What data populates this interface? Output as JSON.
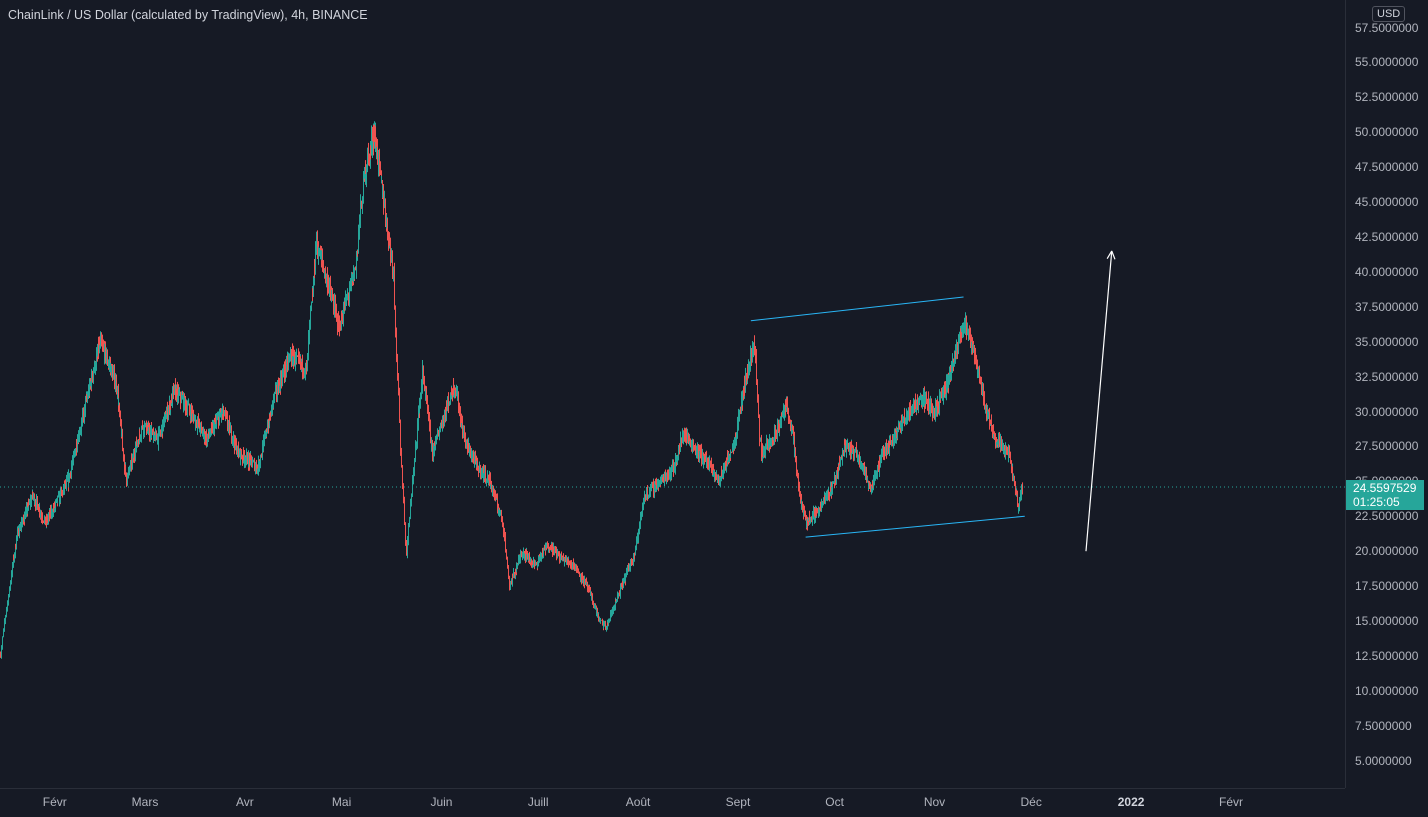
{
  "header": {
    "title": "ChainLink / US Dollar (calculated by TradingView), 4h, BINANCE",
    "currency": "USD"
  },
  "price_tag": {
    "price": "24.5597529",
    "countdown": "01:25:05"
  },
  "colors": {
    "background": "#161a25",
    "up": "#26a69a",
    "down": "#ef5350",
    "channel_line": "#29b6f6",
    "arrow": "#ffffff",
    "text": "#b2b5be"
  },
  "chart_data": {
    "type": "candlestick",
    "title": "ChainLink / US Dollar (calculated by TradingView), 4h, BINANCE",
    "yunit": "USD",
    "ylim": [
      2.5,
      57.5
    ],
    "y_ticks": [
      "57.5000000",
      "55.0000000",
      "52.5000000",
      "50.0000000",
      "47.5000000",
      "45.0000000",
      "42.5000000",
      "40.0000000",
      "37.5000000",
      "35.0000000",
      "32.5000000",
      "30.0000000",
      "27.5000000",
      "25.0000000",
      "22.5000000",
      "20.0000000",
      "17.5000000",
      "15.0000000",
      "12.5000000",
      "10.0000000",
      "7.5000000",
      "5.0000000"
    ],
    "x_ticks": [
      "Févr",
      "Mars",
      "Avr",
      "Mai",
      "Juin",
      "Juill",
      "Août",
      "Sept",
      "Oct",
      "Nov",
      "Déc",
      "2022",
      "Févr"
    ],
    "x_tick_dates": [
      "2021-02-01",
      "2021-03-01",
      "2021-04-01",
      "2021-05-01",
      "2021-06-01",
      "2021-07-01",
      "2021-08-01",
      "2021-09-01",
      "2021-10-01",
      "2021-11-01",
      "2021-12-01",
      "2022-01-01",
      "2022-02-01"
    ],
    "xlim": [
      "2021-01-15",
      "2022-02-28"
    ],
    "grid": false,
    "current_price": 24.5597529,
    "price_path": [
      [
        "2021-01-15",
        12.6
      ],
      [
        "2021-01-20",
        21.0
      ],
      [
        "2021-01-25",
        24.0
      ],
      [
        "2021-01-29",
        22.0
      ],
      [
        "2021-02-05",
        25.0
      ],
      [
        "2021-02-10",
        30.0
      ],
      [
        "2021-02-15",
        35.0
      ],
      [
        "2021-02-20",
        32.0
      ],
      [
        "2021-02-23",
        25.0
      ],
      [
        "2021-02-28",
        29.0
      ],
      [
        "2021-03-05",
        28.0
      ],
      [
        "2021-03-10",
        31.5
      ],
      [
        "2021-03-15",
        30.0
      ],
      [
        "2021-03-20",
        28.0
      ],
      [
        "2021-03-25",
        30.0
      ],
      [
        "2021-03-30",
        27.0
      ],
      [
        "2021-04-05",
        26.0
      ],
      [
        "2021-04-10",
        31.0
      ],
      [
        "2021-04-15",
        34.0
      ],
      [
        "2021-04-20",
        33.0
      ],
      [
        "2021-04-23",
        42.0
      ],
      [
        "2021-04-27",
        39.0
      ],
      [
        "2021-04-30",
        36.0
      ],
      [
        "2021-05-05",
        40.0
      ],
      [
        "2021-05-08",
        47.0
      ],
      [
        "2021-05-11",
        50.0
      ],
      [
        "2021-05-14",
        45.0
      ],
      [
        "2021-05-17",
        40.0
      ],
      [
        "2021-05-19",
        28.0
      ],
      [
        "2021-05-21",
        20.0
      ],
      [
        "2021-05-23",
        25.0
      ],
      [
        "2021-05-26",
        33.0
      ],
      [
        "2021-05-29",
        27.0
      ],
      [
        "2021-06-02",
        30.0
      ],
      [
        "2021-06-05",
        32.0
      ],
      [
        "2021-06-08",
        28.0
      ],
      [
        "2021-06-12",
        26.0
      ],
      [
        "2021-06-16",
        25.0
      ],
      [
        "2021-06-20",
        22.0
      ],
      [
        "2021-06-22",
        17.5
      ],
      [
        "2021-06-26",
        20.0
      ],
      [
        "2021-06-30",
        19.0
      ],
      [
        "2021-07-04",
        20.5
      ],
      [
        "2021-07-08",
        19.5
      ],
      [
        "2021-07-12",
        19.0
      ],
      [
        "2021-07-16",
        17.5
      ],
      [
        "2021-07-20",
        15.0
      ],
      [
        "2021-07-22",
        14.5
      ],
      [
        "2021-07-26",
        17.0
      ],
      [
        "2021-07-31",
        20.0
      ],
      [
        "2021-08-03",
        24.0
      ],
      [
        "2021-08-08",
        25.0
      ],
      [
        "2021-08-12",
        26.0
      ],
      [
        "2021-08-15",
        28.5
      ],
      [
        "2021-08-18",
        27.5
      ],
      [
        "2021-08-22",
        26.5
      ],
      [
        "2021-08-26",
        25.0
      ],
      [
        "2021-08-31",
        28.0
      ],
      [
        "2021-09-03",
        32.0
      ],
      [
        "2021-09-06",
        35.0
      ],
      [
        "2021-09-08",
        27.0
      ],
      [
        "2021-09-12",
        28.0
      ],
      [
        "2021-09-16",
        30.5
      ],
      [
        "2021-09-18",
        28.0
      ],
      [
        "2021-09-20",
        24.0
      ],
      [
        "2021-09-22",
        22.0
      ],
      [
        "2021-09-26",
        23.0
      ],
      [
        "2021-09-30",
        24.5
      ],
      [
        "2021-10-04",
        27.5
      ],
      [
        "2021-10-08",
        27.0
      ],
      [
        "2021-10-12",
        24.5
      ],
      [
        "2021-10-16",
        27.0
      ],
      [
        "2021-10-20",
        28.5
      ],
      [
        "2021-10-24",
        30.0
      ],
      [
        "2021-10-28",
        31.0
      ],
      [
        "2021-11-01",
        30.0
      ],
      [
        "2021-11-05",
        32.0
      ],
      [
        "2021-11-08",
        34.5
      ],
      [
        "2021-11-10",
        36.5
      ],
      [
        "2021-11-14",
        33.5
      ],
      [
        "2021-11-17",
        30.0
      ],
      [
        "2021-11-20",
        28.0
      ],
      [
        "2021-11-24",
        27.0
      ],
      [
        "2021-11-27",
        23.0
      ],
      [
        "2021-11-28",
        24.5597529
      ]
    ],
    "annotations": [
      {
        "type": "trendline",
        "points": [
          [
            "2021-09-05",
            36.5
          ],
          [
            "2021-11-10",
            38.2
          ]
        ]
      },
      {
        "type": "trendline",
        "points": [
          [
            "2021-09-22",
            21.0
          ],
          [
            "2021-11-29",
            22.5
          ]
        ]
      },
      {
        "type": "arrow",
        "points": [
          [
            "2021-12-18",
            20.0
          ],
          [
            "2021-12-26",
            41.5
          ]
        ]
      }
    ]
  }
}
